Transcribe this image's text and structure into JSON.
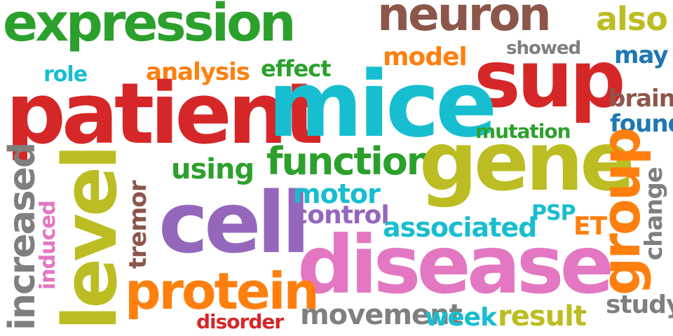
{
  "words": {
    "expression": {
      "text": "expression",
      "color": "#2ca02c"
    },
    "neuron": {
      "text": "neuron",
      "color": "#8c564b"
    },
    "also": {
      "text": "also",
      "color": "#bcbd22"
    },
    "showed": {
      "text": "showed",
      "color": "#7f7f7f"
    },
    "model": {
      "text": "model",
      "color": "#ff7f0e"
    },
    "may": {
      "text": "may",
      "color": "#1f77b4"
    },
    "role": {
      "text": "role",
      "color": "#17becf"
    },
    "analysis": {
      "text": "analysis",
      "color": "#ff7f0e"
    },
    "effect": {
      "text": "effect",
      "color": "#2ca02c"
    },
    "sup": {
      "text": "sup",
      "color": "#d62728"
    },
    "brain": {
      "text": "brain",
      "color": "#8c564b"
    },
    "found": {
      "text": "found",
      "color": "#1f77b4"
    },
    "patient": {
      "text": "patient",
      "color": "#d62728"
    },
    "mice": {
      "text": "mice",
      "color": "#17becf"
    },
    "mutation": {
      "text": "mutation",
      "color": "#2ca02c"
    },
    "using": {
      "text": "using",
      "color": "#2ca02c"
    },
    "function": {
      "text": "function",
      "color": "#2ca02c"
    },
    "gene": {
      "text": "gene",
      "color": "#bcbd22"
    },
    "group": {
      "text": "group",
      "color": "#ff7f0e"
    },
    "study": {
      "text": "study",
      "color": "#7f7f7f"
    },
    "change": {
      "text": "change",
      "color": "#7f7f7f"
    },
    "increased": {
      "text": "increased",
      "color": "#7f7f7f"
    },
    "induced": {
      "text": "induced",
      "color": "#e377c2"
    },
    "level": {
      "text": "level",
      "color": "#bcbd22"
    },
    "tremor": {
      "text": "tremor",
      "color": "#8c564b"
    },
    "cell": {
      "text": "cell",
      "color": "#9467bd"
    },
    "motor": {
      "text": "motor",
      "color": "#17becf"
    },
    "control": {
      "text": "control",
      "color": "#9467bd"
    },
    "PSP": {
      "text": "PSP",
      "color": "#17becf"
    },
    "ET": {
      "text": "ET",
      "color": "#ff7f0e"
    },
    "associated": {
      "text": "associated",
      "color": "#17becf"
    },
    "disease": {
      "text": "disease",
      "color": "#e377c2"
    },
    "protein": {
      "text": "protein",
      "color": "#ff7f0e"
    },
    "movement": {
      "text": "movement",
      "color": "#7f7f7f"
    },
    "week": {
      "text": "week",
      "color": "#17becf"
    },
    "result": {
      "text": "result",
      "color": "#bcbd22"
    },
    "disorder": {
      "text": "disorder",
      "color": "#d62728"
    }
  }
}
